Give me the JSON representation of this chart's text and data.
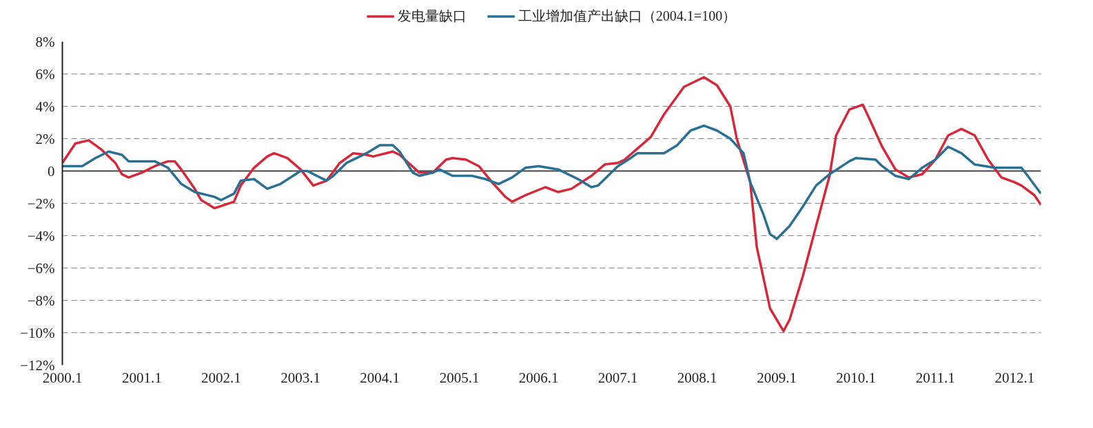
{
  "chart_data": {
    "type": "line",
    "legend": "top",
    "grid": "y",
    "line_style": "solid",
    "xlim": [
      "2000-01",
      "2012-05"
    ],
    "ylim": [
      -12,
      8
    ],
    "xticks": [
      {
        "value": "2000-01",
        "label": "2000.1"
      },
      {
        "value": "2001-01",
        "label": "2001.1"
      },
      {
        "value": "2002-01",
        "label": "2002.1"
      },
      {
        "value": "2003-01",
        "label": "2003.1"
      },
      {
        "value": "2004-01",
        "label": "2004.1"
      },
      {
        "value": "2005-01",
        "label": "2005.1"
      },
      {
        "value": "2006-01",
        "label": "2006.1"
      },
      {
        "value": "2007-01",
        "label": "2007.1"
      },
      {
        "value": "2008-01",
        "label": "2008.1"
      },
      {
        "value": "2009-01",
        "label": "2009.1"
      },
      {
        "value": "2010-01",
        "label": "2010.1"
      },
      {
        "value": "2011-01",
        "label": "2011.1"
      },
      {
        "value": "2012-01",
        "label": "2012.1"
      }
    ],
    "yticks": [
      {
        "value": 8,
        "label": "8%"
      },
      {
        "value": 6,
        "label": "6%"
      },
      {
        "value": 4,
        "label": "4%"
      },
      {
        "value": 2,
        "label": "2%"
      },
      0,
      {
        "value": -2,
        "label": "−2%"
      },
      {
        "value": -4,
        "label": "−4%"
      },
      {
        "value": -6,
        "label": "−6%"
      },
      {
        "value": -8,
        "label": "−8%"
      },
      {
        "value": -10,
        "label": "−10%"
      },
      {
        "value": -12,
        "label": "−12%"
      }
    ],
    "ref_lines": [
      {
        "axis": "y",
        "value": 0,
        "color": "#444444",
        "line_style": "solid"
      }
    ],
    "series": [
      {
        "name": "发电量缺口",
        "color": "#d9273a",
        "x": [
          "2000-01",
          "2000-03",
          "2000-05",
          "2000-07",
          "2000-09",
          "2000-10",
          "2000-11",
          "2001-01",
          "2001-03",
          "2001-05",
          "2001-06",
          "2001-07",
          "2001-09",
          "2001-10",
          "2001-12",
          "2002-03",
          "2002-04",
          "2002-06",
          "2002-08",
          "2002-09",
          "2002-11",
          "2003-01",
          "2003-03",
          "2003-05",
          "2003-07",
          "2003-09",
          "2003-11",
          "2003-12",
          "2004-03",
          "2004-04",
          "2004-07",
          "2004-09",
          "2004-11",
          "2004-12",
          "2005-02",
          "2005-04",
          "2005-06",
          "2005-08",
          "2005-09",
          "2005-11",
          "2006-02",
          "2006-04",
          "2006-06",
          "2006-09",
          "2006-11",
          "2007-01",
          "2007-02",
          "2007-06",
          "2007-08",
          "2007-11",
          "2008-02",
          "2008-04",
          "2008-06",
          "2008-07",
          "2008-09",
          "2008-10",
          "2008-12",
          "2009-02",
          "2009-03",
          "2009-05",
          "2009-07",
          "2009-09",
          "2009-10",
          "2009-12",
          "2010-02",
          "2010-03",
          "2010-05",
          "2010-07",
          "2010-09",
          "2010-11",
          "2011-01",
          "2011-03",
          "2011-05",
          "2011-07",
          "2011-09",
          "2011-11",
          "2012-01",
          "2012-02",
          "2012-04",
          "2012-05"
        ],
        "values": [
          0.5,
          1.7,
          1.9,
          1.3,
          0.5,
          -0.2,
          -0.4,
          -0.1,
          0.3,
          0.6,
          0.6,
          0.1,
          -1.1,
          -1.8,
          -2.3,
          -1.9,
          -0.9,
          0.2,
          0.9,
          1.1,
          0.8,
          0.1,
          -0.9,
          -0.6,
          0.5,
          1.1,
          1.0,
          0.9,
          1.2,
          1.0,
          -0.1,
          -0.1,
          0.7,
          0.8,
          0.7,
          0.3,
          -0.7,
          -1.6,
          -1.9,
          -1.5,
          -1.0,
          -1.3,
          -1.1,
          -0.3,
          0.4,
          0.5,
          0.7,
          2.1,
          3.5,
          5.2,
          5.8,
          5.3,
          4.0,
          2.0,
          -0.7,
          -4.7,
          -8.5,
          -9.9,
          -9.2,
          -6.5,
          -3.4,
          -0.3,
          2.2,
          3.8,
          4.1,
          3.3,
          1.5,
          0.1,
          -0.4,
          -0.2,
          0.7,
          2.2,
          2.6,
          2.2,
          0.7,
          -0.4,
          -0.7,
          -0.9,
          -1.5,
          -2.1
        ]
      },
      {
        "name": "工业增加值产出缺口（2004.1=100）",
        "color": "#2a6f94",
        "x": [
          "2000-01",
          "2000-04",
          "2000-06",
          "2000-08",
          "2000-10",
          "2000-11",
          "2001-03",
          "2001-05",
          "2001-07",
          "2001-09",
          "2001-12",
          "2002-01",
          "2002-03",
          "2002-04",
          "2002-06",
          "2002-08",
          "2002-10",
          "2003-01",
          "2003-02",
          "2003-05",
          "2003-06",
          "2003-08",
          "2003-11",
          "2004-01",
          "2004-03",
          "2004-04",
          "2004-06",
          "2004-07",
          "2004-09",
          "2004-10",
          "2004-12",
          "2005-03",
          "2005-05",
          "2005-07",
          "2005-08",
          "2005-09",
          "2005-11",
          "2006-01",
          "2006-04",
          "2006-07",
          "2006-09",
          "2006-10",
          "2007-01",
          "2007-03",
          "2007-04",
          "2007-08",
          "2007-10",
          "2007-12",
          "2008-02",
          "2008-04",
          "2008-06",
          "2008-08",
          "2008-09",
          "2008-11",
          "2008-12",
          "2009-01",
          "2009-03",
          "2009-05",
          "2009-07",
          "2009-09",
          "2009-12",
          "2010-01",
          "2010-04",
          "2010-05",
          "2010-07",
          "2010-09",
          "2010-11",
          "2011-01",
          "2011-03",
          "2011-05",
          "2011-07",
          "2011-10",
          "2011-11",
          "2012-02",
          "2012-03",
          "2012-05"
        ],
        "values": [
          0.3,
          0.3,
          0.8,
          1.2,
          1.0,
          0.6,
          0.6,
          0.2,
          -0.8,
          -1.3,
          -1.6,
          -1.8,
          -1.4,
          -0.6,
          -0.5,
          -1.1,
          -0.8,
          0.0,
          0.0,
          -0.6,
          -0.3,
          0.5,
          1.1,
          1.6,
          1.6,
          1.2,
          -0.1,
          -0.3,
          -0.1,
          0.1,
          -0.3,
          -0.3,
          -0.5,
          -0.8,
          -0.6,
          -0.4,
          0.2,
          0.3,
          0.1,
          -0.5,
          -1.0,
          -0.9,
          0.3,
          0.8,
          1.1,
          1.1,
          1.6,
          2.5,
          2.8,
          2.5,
          2.0,
          1.1,
          -0.7,
          -2.7,
          -3.9,
          -4.2,
          -3.4,
          -2.2,
          -0.9,
          -0.2,
          0.6,
          0.8,
          0.7,
          0.3,
          -0.3,
          -0.5,
          0.2,
          0.7,
          1.5,
          1.1,
          0.4,
          0.2,
          0.2,
          0.2,
          -0.3,
          -1.4
        ]
      }
    ]
  }
}
